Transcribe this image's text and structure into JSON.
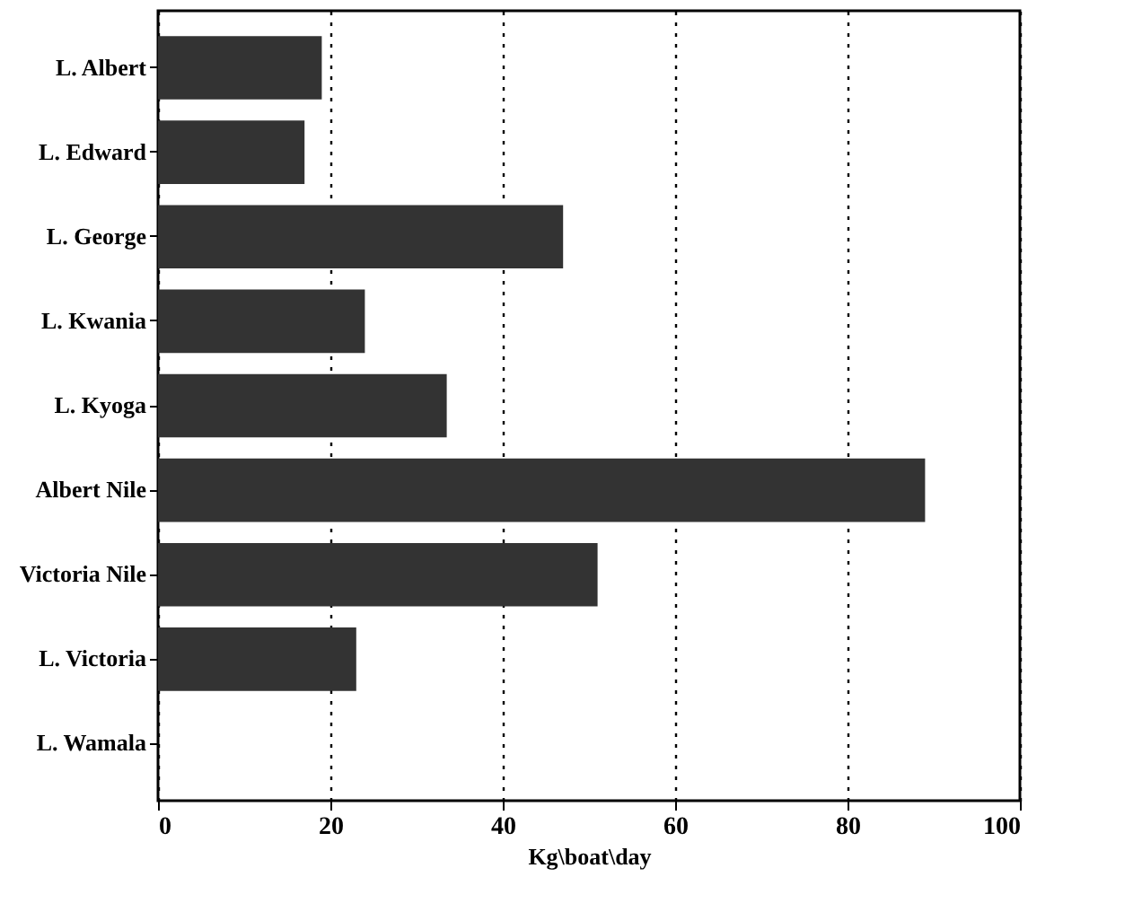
{
  "chart_data": {
    "type": "bar",
    "orientation": "horizontal",
    "xlabel": "Kg\\boat\\day",
    "categories": [
      "L. Albert",
      "L. Edward",
      "L. George",
      "L. Kwania",
      "L. Kyoga",
      "Albert Nile",
      "Victoria Nile",
      "L. Victoria",
      "L. Wamala"
    ],
    "values": [
      19,
      17,
      47,
      24,
      33.5,
      89,
      51,
      23,
      0
    ],
    "color": "#333333",
    "xlim": [
      0,
      100
    ],
    "xticks": [
      0,
      20,
      40,
      60,
      80,
      100
    ],
    "grid": "x"
  }
}
